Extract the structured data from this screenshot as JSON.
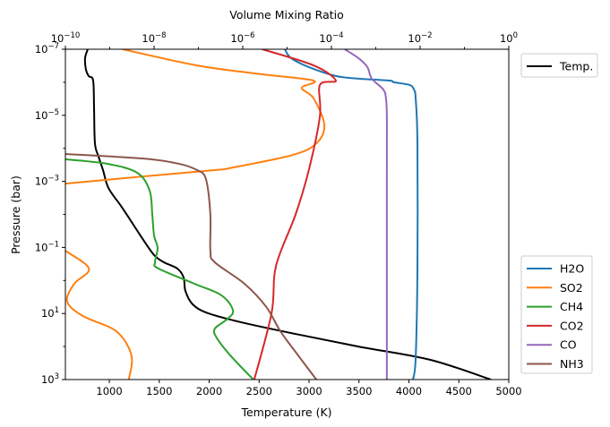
{
  "chart_data": {
    "type": "line",
    "xlabel": "Temperature (K)",
    "x2label": "Volume Mixing Ratio",
    "ylabel": "Pressure (bar)",
    "xlim": [
      560,
      5000
    ],
    "x2lim": [
      1e-10,
      1
    ],
    "x2scale": "log",
    "ylim": [
      1000,
      1e-07
    ],
    "yscale": "log",
    "yinverted": true,
    "grid": false,
    "xticks": [
      1000,
      1500,
      2000,
      2500,
      3000,
      3500,
      4000,
      4500,
      5000
    ],
    "x2ticks_exp": [
      -10,
      -8,
      -6,
      -4,
      -2,
      0
    ],
    "yticks_exp": [
      -7,
      -5,
      -3,
      -1,
      1,
      3
    ],
    "legend_top": {
      "placement": "outside top-right",
      "entries": [
        "Temp."
      ]
    },
    "legend_bottom": {
      "placement": "outside bottom-right",
      "entries": [
        "H2O",
        "SO2",
        "CH4",
        "CO2",
        "CO",
        "NH3"
      ]
    },
    "series": [
      {
        "name": "Temp.",
        "axis": "temperature",
        "color": "#000000",
        "points": [
          [
            784,
            -7
          ],
          [
            757,
            -6.73
          ],
          [
            766,
            -6.38
          ],
          [
            793,
            -6.19
          ],
          [
            838,
            -6.05
          ],
          [
            847,
            -5.24
          ],
          [
            856,
            -4.15
          ],
          [
            892,
            -3.75
          ],
          [
            937,
            -3.34
          ],
          [
            991,
            -2.8
          ],
          [
            1116,
            -2.26
          ],
          [
            1206,
            -1.85
          ],
          [
            1340,
            -1.23
          ],
          [
            1448,
            -0.77
          ],
          [
            1547,
            -0.55
          ],
          [
            1681,
            -0.36
          ],
          [
            1744,
            -0.09
          ],
          [
            1762,
            0.32
          ],
          [
            1834,
            0.72
          ],
          [
            1986,
            0.99
          ],
          [
            2327,
            1.27
          ],
          [
            2865,
            1.62
          ],
          [
            3493,
            2.0
          ],
          [
            4211,
            2.4
          ],
          [
            4821,
            3
          ]
        ]
      },
      {
        "name": "H2O",
        "axis": "vmr",
        "color": "#1f77b4",
        "points": [
          [
            -5.05,
            -7
          ],
          [
            -4.91,
            -6.73
          ],
          [
            -4.51,
            -6.46
          ],
          [
            -3.9,
            -6.19
          ],
          [
            -3.39,
            -6.11
          ],
          [
            -2.69,
            -6.05
          ],
          [
            -2.59,
            -6.0
          ],
          [
            -2.24,
            -5.92
          ],
          [
            -2.14,
            -5.78
          ],
          [
            -2.1,
            -5.51
          ],
          [
            -2.06,
            -4.15
          ],
          [
            -2.06,
            -0.36
          ],
          [
            -2.1,
            2.35
          ],
          [
            -2.16,
            3
          ]
        ]
      },
      {
        "name": "SO2",
        "axis": "vmr",
        "color": "#ff7f0e",
        "points": [
          [
            -8.71,
            -7
          ],
          [
            -7.03,
            -6.51
          ],
          [
            -5.56,
            -6.24
          ],
          [
            -4.4,
            -6.05
          ],
          [
            -4.67,
            -5.83
          ],
          [
            -4.4,
            -5.51
          ],
          [
            -4.16,
            -4.7
          ],
          [
            -4.34,
            -4.15
          ],
          [
            -4.87,
            -3.8
          ],
          [
            -6.22,
            -3.42
          ],
          [
            -6.63,
            -3.34
          ],
          [
            -8.24,
            -3.15
          ],
          [
            -10,
            -2.93
          ],
          [
            -10.3,
            -2.88
          ]
        ]
      },
      {
        "name": "SO2-lower",
        "axis": "vmr",
        "color": "#ff7f0e",
        "points": [
          [
            -10.3,
            -1.17
          ],
          [
            -10,
            -0.9
          ],
          [
            -9.47,
            -0.36
          ],
          [
            -9.8,
            0.1
          ],
          [
            -9.96,
            0.64
          ],
          [
            -9.6,
            1.08
          ],
          [
            -8.85,
            1.54
          ],
          [
            -8.51,
            2.27
          ],
          [
            -8.57,
            3
          ]
        ]
      },
      {
        "name": "CH4",
        "axis": "vmr",
        "color": "#2ca02c",
        "points": [
          [
            -10.2,
            -3.72
          ],
          [
            -10,
            -3.67
          ],
          [
            -9.05,
            -3.53
          ],
          [
            -8.38,
            -3.26
          ],
          [
            -8.1,
            -2.72
          ],
          [
            -8.04,
            -1.99
          ],
          [
            -8.0,
            -1.36
          ],
          [
            -7.92,
            -0.98
          ],
          [
            -7.98,
            -0.55
          ],
          [
            -7.9,
            -0.36
          ],
          [
            -7.09,
            0.1
          ],
          [
            -6.48,
            0.45
          ],
          [
            -6.22,
            0.91
          ],
          [
            -6.36,
            1.18
          ],
          [
            -6.63,
            1.46
          ],
          [
            -6.59,
            1.73
          ],
          [
            -6.28,
            2.27
          ],
          [
            -5.76,
            3
          ]
        ]
      },
      {
        "name": "CO2",
        "axis": "vmr",
        "color": "#d62728",
        "points": [
          [
            -5.56,
            -7
          ],
          [
            -4.4,
            -6.51
          ],
          [
            -3.9,
            -6.05
          ],
          [
            -4.26,
            -5.92
          ],
          [
            -4.26,
            -4.97
          ],
          [
            -4.51,
            -3.34
          ],
          [
            -4.81,
            -1.99
          ],
          [
            -5.25,
            -0.44
          ],
          [
            -5.35,
            0.99
          ],
          [
            -5.74,
            3
          ]
        ]
      },
      {
        "name": "CO",
        "axis": "vmr",
        "color": "#9467bd",
        "points": [
          [
            -3.7,
            -7
          ],
          [
            -3.39,
            -6.73
          ],
          [
            -3.19,
            -6.46
          ],
          [
            -3.09,
            -6.11
          ],
          [
            -2.83,
            -5.78
          ],
          [
            -2.77,
            -5.51
          ],
          [
            -2.75,
            -4.97
          ],
          [
            -2.75,
            -3.07
          ],
          [
            -2.75,
            3
          ]
        ]
      },
      {
        "name": "NH3",
        "axis": "vmr",
        "color": "#8c564b",
        "points": [
          [
            -10.2,
            -3.86
          ],
          [
            -10,
            -3.83
          ],
          [
            -8.24,
            -3.69
          ],
          [
            -7.43,
            -3.53
          ],
          [
            -7.03,
            -3.34
          ],
          [
            -6.83,
            -3.07
          ],
          [
            -6.73,
            -1.99
          ],
          [
            -6.73,
            -0.9
          ],
          [
            -6.63,
            -0.55
          ],
          [
            -5.96,
            0.1
          ],
          [
            -5.47,
            0.8
          ],
          [
            -5.15,
            1.54
          ],
          [
            -4.75,
            2.27
          ],
          [
            -4.34,
            3
          ]
        ]
      }
    ]
  }
}
